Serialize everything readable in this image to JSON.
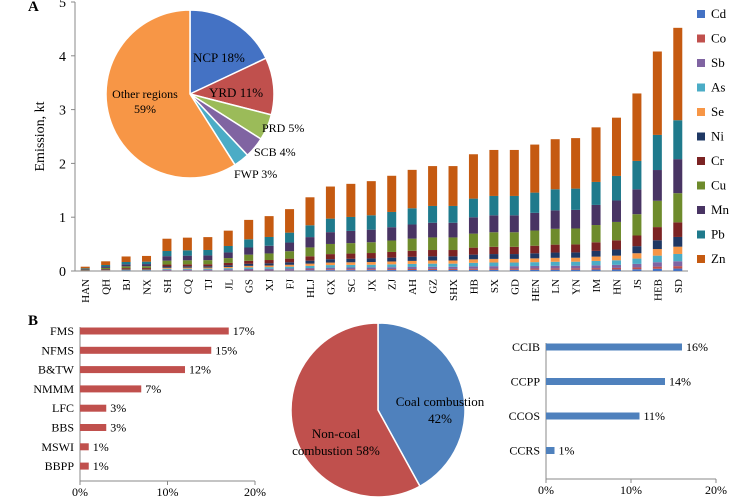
{
  "panel_labels": {
    "a": "A",
    "b": "B"
  },
  "chart_data": [
    {
      "id": "stacked",
      "type": "bar",
      "stacked": true,
      "title": "",
      "ylabel": "Emission, kt",
      "ylim": [
        0,
        5
      ],
      "yticks": [
        0,
        1,
        2,
        3,
        4,
        5
      ],
      "legend_position": "right",
      "categories": [
        "HAN",
        "QH",
        "BJ",
        "NX",
        "SH",
        "CQ",
        "TJ",
        "JL",
        "GS",
        "XJ",
        "FJ",
        "HLJ",
        "GX",
        "SC",
        "JX",
        "ZJ",
        "AH",
        "GZ",
        "SHX",
        "HB",
        "SX",
        "GD",
        "HEN",
        "LN",
        "YN",
        "IM",
        "HN",
        "JS",
        "HEB",
        "SD"
      ],
      "totals": [
        0.08,
        0.18,
        0.27,
        0.28,
        0.6,
        0.62,
        0.63,
        0.75,
        0.95,
        1.02,
        1.15,
        1.37,
        1.57,
        1.62,
        1.67,
        1.77,
        1.88,
        1.95,
        1.95,
        2.17,
        2.25,
        2.25,
        2.35,
        2.45,
        2.47,
        2.67,
        2.85,
        3.3,
        4.08,
        4.52
      ],
      "series": [
        {
          "name": "Cd",
          "color": "#4472C4",
          "share": 0.01
        },
        {
          "name": "Co",
          "color": "#C0504D",
          "share": 0.01
        },
        {
          "name": "Sb",
          "color": "#8064A2",
          "share": 0.02
        },
        {
          "name": "As",
          "color": "#4BACC6",
          "share": 0.03
        },
        {
          "name": "Se",
          "color": "#F79646",
          "share": 0.03
        },
        {
          "name": "Ni",
          "color": "#1F3864",
          "share": 0.04
        },
        {
          "name": "Cr",
          "color": "#7B2323",
          "share": 0.06
        },
        {
          "name": "Cu",
          "color": "#6E8B2C",
          "share": 0.12
        },
        {
          "name": "Mn",
          "color": "#483463",
          "share": 0.14
        },
        {
          "name": "Pb",
          "color": "#1F7A8C",
          "share": 0.16
        },
        {
          "name": "Zn",
          "color": "#C55A11",
          "share": 0.38
        }
      ]
    },
    {
      "id": "regions_pie",
      "type": "pie",
      "slices": [
        {
          "label": "NCP 18%",
          "value": 18,
          "color": "#4472C4"
        },
        {
          "label": "YRD 11%",
          "value": 11,
          "color": "#C0504D"
        },
        {
          "label": "PRD 5%",
          "value": 5,
          "color": "#9BBB59"
        },
        {
          "label": "SCB 4%",
          "value": 4,
          "color": "#8064A2"
        },
        {
          "label": "FWP 3%",
          "value": 3,
          "color": "#4BACC6"
        },
        {
          "label_line1": "Other regions",
          "label_line2": "59%",
          "value": 59,
          "color": "#F79646"
        }
      ]
    },
    {
      "id": "noncoal_bars",
      "type": "bar",
      "orientation": "horizontal",
      "color": "#C0504D",
      "categories": [
        "FMS",
        "NFMS",
        "B&TW",
        "NMMM",
        "LFC",
        "BBS",
        "MSWI",
        "BBPP"
      ],
      "values": [
        17,
        15,
        12,
        7,
        3,
        3,
        1,
        1
      ],
      "value_labels": [
        "17%",
        "15%",
        "12%",
        "7%",
        "3%",
        "3%",
        "1%",
        "1%"
      ],
      "xlim": [
        0,
        20
      ],
      "xticks": [
        "0%",
        "10%",
        "20%"
      ]
    },
    {
      "id": "combustion_pie",
      "type": "pie",
      "slices": [
        {
          "label_line1": "Coal combustion",
          "label_line2": "42%",
          "value": 42,
          "color": "#4F81BD"
        },
        {
          "label_line1": "Non-coal",
          "label_line2": "combustion 58%",
          "value": 58,
          "color": "#C0504D"
        }
      ]
    },
    {
      "id": "coal_bars",
      "type": "bar",
      "orientation": "horizontal",
      "color": "#4F81BD",
      "categories": [
        "CCIB",
        "CCPP",
        "CCOS",
        "CCRS"
      ],
      "values": [
        16,
        14,
        11,
        1
      ],
      "value_labels": [
        "16%",
        "14%",
        "11%",
        "1%"
      ],
      "xlim": [
        0,
        20
      ],
      "xticks": [
        "0%",
        "10%",
        "20%"
      ]
    }
  ]
}
